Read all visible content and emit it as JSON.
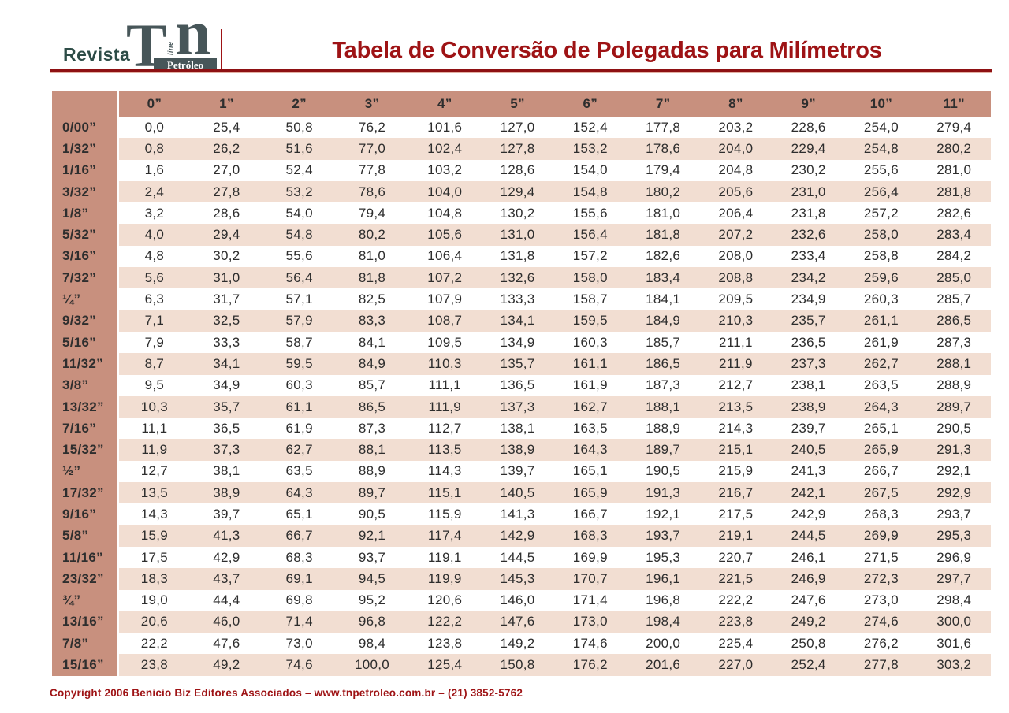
{
  "header": {
    "brand": {
      "revista": "Revista",
      "logo_t": "T",
      "logo_online": "on line",
      "logo_n": "n",
      "logo_petroleo": "Petróleo"
    },
    "title": "Tabela de Conversão de Polegadas para Milímetros"
  },
  "table": {
    "corner_label": "",
    "column_headers": [
      "0”",
      "1”",
      "2”",
      "3”",
      "4”",
      "5”",
      "6”",
      "7”",
      "8”",
      "9”",
      "10”",
      "11”"
    ],
    "rows": [
      {
        "label": "0/00”",
        "values": [
          "0,0",
          "25,4",
          "50,8",
          "76,2",
          "101,6",
          "127,0",
          "152,4",
          "177,8",
          "203,2",
          "228,6",
          "254,0",
          "279,4"
        ]
      },
      {
        "label": "1/32”",
        "values": [
          "0,8",
          "26,2",
          "51,6",
          "77,0",
          "102,4",
          "127,8",
          "153,2",
          "178,6",
          "204,0",
          "229,4",
          "254,8",
          "280,2"
        ]
      },
      {
        "label": "1/16”",
        "values": [
          "1,6",
          "27,0",
          "52,4",
          "77,8",
          "103,2",
          "128,6",
          "154,0",
          "179,4",
          "204,8",
          "230,2",
          "255,6",
          "281,0"
        ]
      },
      {
        "label": "3/32”",
        "values": [
          "2,4",
          "27,8",
          "53,2",
          "78,6",
          "104,0",
          "129,4",
          "154,8",
          "180,2",
          "205,6",
          "231,0",
          "256,4",
          "281,8"
        ]
      },
      {
        "label": "1/8”",
        "values": [
          "3,2",
          "28,6",
          "54,0",
          "79,4",
          "104,8",
          "130,2",
          "155,6",
          "181,0",
          "206,4",
          "231,8",
          "257,2",
          "282,6"
        ]
      },
      {
        "label": "5/32”",
        "values": [
          "4,0",
          "29,4",
          "54,8",
          "80,2",
          "105,6",
          "131,0",
          "156,4",
          "181,8",
          "207,2",
          "232,6",
          "258,0",
          "283,4"
        ]
      },
      {
        "label": "3/16”",
        "values": [
          "4,8",
          "30,2",
          "55,6",
          "81,0",
          "106,4",
          "131,8",
          "157,2",
          "182,6",
          "208,0",
          "233,4",
          "258,8",
          "284,2"
        ]
      },
      {
        "label": "7/32”",
        "values": [
          "5,6",
          "31,0",
          "56,4",
          "81,8",
          "107,2",
          "132,6",
          "158,0",
          "183,4",
          "208,8",
          "234,2",
          "259,6",
          "285,0"
        ]
      },
      {
        "label": "¼”",
        "values": [
          "6,3",
          "31,7",
          "57,1",
          "82,5",
          "107,9",
          "133,3",
          "158,7",
          "184,1",
          "209,5",
          "234,9",
          "260,3",
          "285,7"
        ]
      },
      {
        "label": "9/32”",
        "values": [
          "7,1",
          "32,5",
          "57,9",
          "83,3",
          "108,7",
          "134,1",
          "159,5",
          "184,9",
          "210,3",
          "235,7",
          "261,1",
          "286,5"
        ]
      },
      {
        "label": "5/16”",
        "values": [
          "7,9",
          "33,3",
          "58,7",
          "84,1",
          "109,5",
          "134,9",
          "160,3",
          "185,7",
          "211,1",
          "236,5",
          "261,9",
          "287,3"
        ]
      },
      {
        "label": "11/32”",
        "values": [
          "8,7",
          "34,1",
          "59,5",
          "84,9",
          "110,3",
          "135,7",
          "161,1",
          "186,5",
          "211,9",
          "237,3",
          "262,7",
          "288,1"
        ]
      },
      {
        "label": "3/8”",
        "values": [
          "9,5",
          "34,9",
          "60,3",
          "85,7",
          "111,1",
          "136,5",
          "161,9",
          "187,3",
          "212,7",
          "238,1",
          "263,5",
          "288,9"
        ]
      },
      {
        "label": "13/32”",
        "values": [
          "10,3",
          "35,7",
          "61,1",
          "86,5",
          "111,9",
          "137,3",
          "162,7",
          "188,1",
          "213,5",
          "238,9",
          "264,3",
          "289,7"
        ]
      },
      {
        "label": "7/16”",
        "values": [
          "11,1",
          "36,5",
          "61,9",
          "87,3",
          "112,7",
          "138,1",
          "163,5",
          "188,9",
          "214,3",
          "239,7",
          "265,1",
          "290,5"
        ]
      },
      {
        "label": "15/32”",
        "values": [
          "11,9",
          "37,3",
          "62,7",
          "88,1",
          "113,5",
          "138,9",
          "164,3",
          "189,7",
          "215,1",
          "240,5",
          "265,9",
          "291,3"
        ]
      },
      {
        "label": "½”",
        "values": [
          "12,7",
          "38,1",
          "63,5",
          "88,9",
          "114,3",
          "139,7",
          "165,1",
          "190,5",
          "215,9",
          "241,3",
          "266,7",
          "292,1"
        ]
      },
      {
        "label": "17/32”",
        "values": [
          "13,5",
          "38,9",
          "64,3",
          "89,7",
          "115,1",
          "140,5",
          "165,9",
          "191,3",
          "216,7",
          "242,1",
          "267,5",
          "292,9"
        ]
      },
      {
        "label": "9/16”",
        "values": [
          "14,3",
          "39,7",
          "65,1",
          "90,5",
          "115,9",
          "141,3",
          "166,7",
          "192,1",
          "217,5",
          "242,9",
          "268,3",
          "293,7"
        ]
      },
      {
        "label": "5/8”",
        "values": [
          "15,9",
          "41,3",
          "66,7",
          "92,1",
          "117,4",
          "142,9",
          "168,3",
          "193,7",
          "219,1",
          "244,5",
          "269,9",
          "295,3"
        ]
      },
      {
        "label": "11/16”",
        "values": [
          "17,5",
          "42,9",
          "68,3",
          "93,7",
          "119,1",
          "144,5",
          "169,9",
          "195,3",
          "220,7",
          "246,1",
          "271,5",
          "296,9"
        ]
      },
      {
        "label": "23/32”",
        "values": [
          "18,3",
          "43,7",
          "69,1",
          "94,5",
          "119,9",
          "145,3",
          "170,7",
          "196,1",
          "221,5",
          "246,9",
          "272,3",
          "297,7"
        ]
      },
      {
        "label": "¾”",
        "values": [
          "19,0",
          "44,4",
          "69,8",
          "95,2",
          "120,6",
          "146,0",
          "171,4",
          "196,8",
          "222,2",
          "247,6",
          "273,0",
          "298,4"
        ]
      },
      {
        "label": "13/16”",
        "values": [
          "20,6",
          "46,0",
          "71,4",
          "96,8",
          "122,2",
          "147,6",
          "173,0",
          "198,4",
          "223,8",
          "249,2",
          "274,6",
          "300,0"
        ]
      },
      {
        "label": "7/8”",
        "values": [
          "22,2",
          "47,6",
          "73,0",
          "98,4",
          "123,8",
          "149,2",
          "174,6",
          "200,0",
          "225,4",
          "250,8",
          "276,2",
          "301,6"
        ]
      },
      {
        "label": "15/16”",
        "values": [
          "23,8",
          "49,2",
          "74,6",
          "100,0",
          "125,4",
          "150,8",
          "176,2",
          "201,6",
          "227,0",
          "252,4",
          "277,8",
          "303,2"
        ]
      }
    ]
  },
  "footer": {
    "copyright": "Copyright 2006 Benicio Biz Editores Associados – www.tnpetroleo.com.br – (21) 3852-5762"
  },
  "colors": {
    "accent_red": "#9e1315",
    "band_salmon": "#c8907e",
    "stripe_pink": "#f2ded2",
    "logo_slate": "#475659"
  }
}
